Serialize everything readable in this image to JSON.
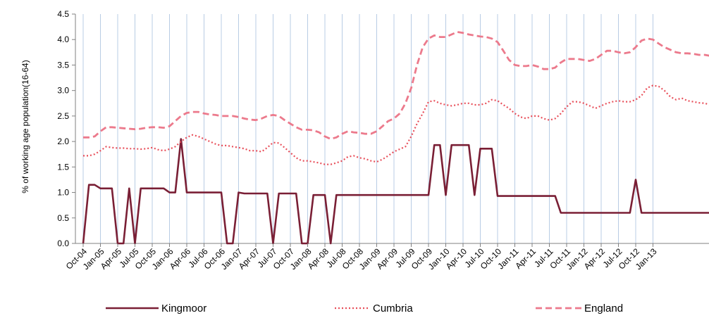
{
  "chart_data": {
    "type": "line",
    "ylabel": "% of working age population(16-64)",
    "xlabel": "",
    "ylim": [
      0,
      4.5
    ],
    "y_ticks": [
      "0.0",
      "0.5",
      "1.0",
      "1.5",
      "2.0",
      "2.5",
      "3.0",
      "3.5",
      "4.0",
      "4.5"
    ],
    "x_tick_labels": [
      "Oct-04",
      "Jan-05",
      "Apr-05",
      "Jul-05",
      "Oct-05",
      "Jan-06",
      "Apr-06",
      "Jul-06",
      "Oct-06",
      "Jan-07",
      "Apr-07",
      "Jul-07",
      "Oct-07",
      "Jan-08",
      "Apr-08",
      "Jul-08",
      "Oct-08",
      "Jan-09",
      "Apr-09",
      "Jul-09",
      "Oct-09",
      "Jan-10",
      "Apr-10",
      "Jul-10",
      "Oct-10",
      "Jan-11",
      "Apr-11",
      "Jul-11",
      "Oct-11",
      "Jan-12",
      "Apr-12",
      "Jul-12",
      "Oct-12",
      "Jan-13"
    ],
    "grid": "vertical",
    "legend_position": "bottom",
    "series": [
      {
        "name": "Kingmoor",
        "color": "#7a1f35",
        "style": "solid",
        "values": [
          0.0,
          1.15,
          1.15,
          1.08,
          1.08,
          1.08,
          0.0,
          0.0,
          1.08,
          0.0,
          1.08,
          1.08,
          1.08,
          1.08,
          1.08,
          1.0,
          1.0,
          2.05,
          1.0,
          1.0,
          1.0,
          1.0,
          1.0,
          1.0,
          1.0,
          0.0,
          0.0,
          1.0,
          0.98,
          0.98,
          0.98,
          0.98,
          0.98,
          0.0,
          0.98,
          0.98,
          0.98,
          0.98,
          0.0,
          0.0,
          0.95,
          0.95,
          0.95,
          0.0,
          0.95,
          0.95,
          0.95,
          0.95,
          0.95,
          0.95,
          0.95,
          0.95,
          0.95,
          0.95,
          0.95,
          0.95,
          0.95,
          0.95,
          0.95,
          0.95,
          0.95,
          1.93,
          1.93,
          0.95,
          1.93,
          1.93,
          1.93,
          1.93,
          0.95,
          1.86,
          1.86,
          1.86,
          0.93,
          0.93,
          0.93,
          0.93,
          0.93,
          0.93,
          0.93,
          0.93,
          0.93,
          0.93,
          0.93,
          0.6,
          0.6,
          0.6,
          0.6,
          0.6,
          0.6,
          0.6,
          0.6,
          0.6,
          0.6,
          0.6,
          0.6,
          0.6,
          1.25,
          0.6,
          0.6,
          0.6,
          0.6,
          0.6,
          0.6,
          0.6,
          0.6,
          0.6,
          0.6,
          0.6,
          0.6,
          0.6,
          0.6
        ]
      },
      {
        "name": "Cumbria",
        "color": "#e8505b",
        "style": "dotted",
        "values": [
          1.72,
          1.72,
          1.75,
          1.82,
          1.9,
          1.88,
          1.87,
          1.87,
          1.86,
          1.86,
          1.85,
          1.86,
          1.88,
          1.84,
          1.82,
          1.85,
          1.9,
          2.0,
          2.08,
          2.13,
          2.1,
          2.05,
          2.0,
          1.95,
          1.92,
          1.92,
          1.9,
          1.88,
          1.86,
          1.82,
          1.82,
          1.8,
          1.88,
          1.98,
          1.97,
          1.88,
          1.78,
          1.68,
          1.62,
          1.62,
          1.6,
          1.58,
          1.55,
          1.55,
          1.58,
          1.62,
          1.7,
          1.72,
          1.68,
          1.66,
          1.62,
          1.6,
          1.65,
          1.72,
          1.8,
          1.85,
          1.9,
          2.1,
          2.35,
          2.55,
          2.78,
          2.8,
          2.75,
          2.72,
          2.7,
          2.72,
          2.75,
          2.75,
          2.72,
          2.72,
          2.75,
          2.82,
          2.8,
          2.72,
          2.65,
          2.55,
          2.48,
          2.45,
          2.5,
          2.5,
          2.45,
          2.42,
          2.45,
          2.55,
          2.68,
          2.78,
          2.78,
          2.75,
          2.7,
          2.65,
          2.7,
          2.75,
          2.78,
          2.8,
          2.78,
          2.78,
          2.82,
          2.9,
          3.05,
          3.1,
          3.08,
          3.0,
          2.88,
          2.82,
          2.85,
          2.8,
          2.78,
          2.76,
          2.75,
          2.72,
          2.7,
          2.7,
          2.75
        ]
      },
      {
        "name": "England",
        "color": "#ec7a8c",
        "style": "dashed",
        "values": [
          2.08,
          2.08,
          2.1,
          2.2,
          2.28,
          2.28,
          2.27,
          2.26,
          2.25,
          2.24,
          2.25,
          2.27,
          2.28,
          2.28,
          2.27,
          2.3,
          2.4,
          2.5,
          2.56,
          2.58,
          2.58,
          2.55,
          2.53,
          2.52,
          2.5,
          2.5,
          2.5,
          2.48,
          2.45,
          2.43,
          2.42,
          2.45,
          2.5,
          2.52,
          2.5,
          2.42,
          2.35,
          2.28,
          2.23,
          2.23,
          2.22,
          2.18,
          2.1,
          2.05,
          2.08,
          2.15,
          2.2,
          2.18,
          2.17,
          2.15,
          2.15,
          2.2,
          2.3,
          2.4,
          2.45,
          2.55,
          2.75,
          3.05,
          3.5,
          3.85,
          4.02,
          4.08,
          4.05,
          4.05,
          4.1,
          4.15,
          4.13,
          4.1,
          4.08,
          4.06,
          4.05,
          4.02,
          3.95,
          3.78,
          3.6,
          3.5,
          3.48,
          3.48,
          3.5,
          3.47,
          3.42,
          3.42,
          3.45,
          3.55,
          3.62,
          3.62,
          3.62,
          3.6,
          3.58,
          3.62,
          3.7,
          3.78,
          3.78,
          3.75,
          3.73,
          3.75,
          3.85,
          3.98,
          4.02,
          4.0,
          3.92,
          3.85,
          3.8,
          3.75,
          3.73,
          3.73,
          3.72,
          3.7,
          3.7,
          3.68,
          3.65,
          3.68,
          3.75
        ]
      }
    ]
  }
}
